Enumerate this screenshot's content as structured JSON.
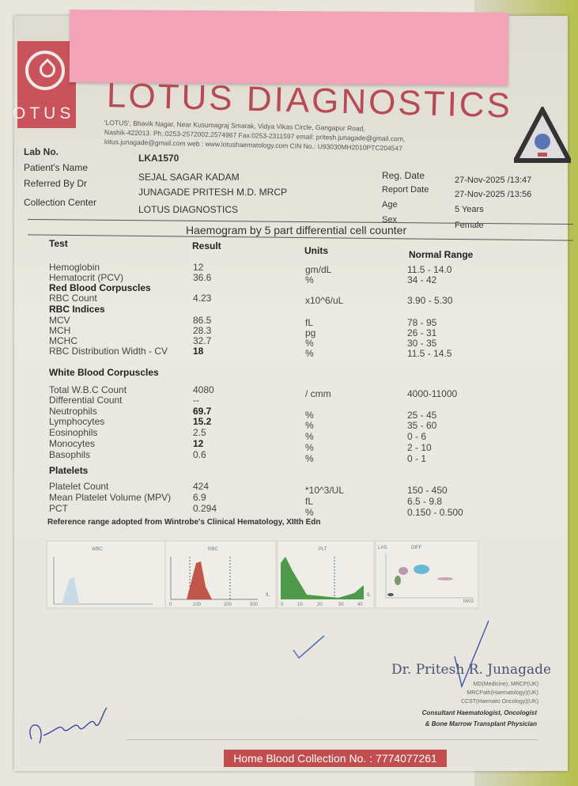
{
  "lab": {
    "name": "LOTUS DIAGNOSTICS",
    "logo_text": "OTUS",
    "address": [
      "'LOTUS', Bhavik Nagar, Near Kusumagraj Smarak, Vidya Vikas Circle, Gangapur Road,",
      "Nashik-422013. Ph.:0253-2572002,2574967 Fax:0253-2311597 email: pritesh.junagade@gmail.com,",
      "lotus.junagade@gmail.com web : www.lotushaematology.com  CIN No.: U93030MH2010PTC204547"
    ]
  },
  "patient": {
    "lab_no_label": "Lab No.",
    "lab_no": "LKA1570",
    "name_label": "Patient's Name",
    "name": "SEJAL SAGAR KADAM",
    "ref_label": "Referred By Dr",
    "ref": "JUNAGADE PRITESH  M.D. MRCP",
    "center_label": "Collection Center",
    "center": "LOTUS DIAGNOSTICS",
    "reg_label": "Reg. Date",
    "reg": "27-Nov-2025  /13:47",
    "report_label": "Report Date",
    "report": "27-Nov-2025 /13:56",
    "age_label": "Age",
    "age": "5 Years",
    "sex_label": "Sex",
    "sex": "Female"
  },
  "report": {
    "title": "Haemogram by 5 part differential cell counter",
    "headers": {
      "test": "Test",
      "result": "Result",
      "units": "Units",
      "range": "Normal Range"
    },
    "rows": [
      {
        "test": "Hemoglobin",
        "result": "12",
        "unit": "gm/dL",
        "range": "11.5 - 14.0"
      },
      {
        "test": "Hematocrit (PCV)",
        "result": "36.6",
        "unit": "%",
        "range": "34 - 42"
      },
      {
        "section": "Red Blood Corpuscles"
      },
      {
        "test": "RBC Count",
        "result": "4.23",
        "unit": "x10^6/uL",
        "range": "3.90 - 5.30"
      },
      {
        "section": "RBC Indices"
      },
      {
        "test": "MCV",
        "result": "86.5",
        "unit": "fL",
        "range": "78 - 95"
      },
      {
        "test": "MCH",
        "result": "28.3",
        "unit": "pg",
        "range": "26 - 31"
      },
      {
        "test": "MCHC",
        "result": "32.7",
        "unit": "%",
        "range": "30 - 35"
      },
      {
        "test": "RBC Distribution Width - CV",
        "result": "18",
        "unit": "%",
        "range": "11.5 - 14.5",
        "flag": true
      },
      {
        "section": "White Blood Corpuscles"
      },
      {
        "test": "Total W.B.C Count",
        "result": "4080",
        "unit": "/ cmm",
        "range": "4000-11000"
      },
      {
        "test": "Differential Count",
        "result": "--",
        "unit": "",
        "range": ""
      },
      {
        "test": "Neutrophils",
        "result": "69.7",
        "unit": "%",
        "range": "25 - 45",
        "flag": true
      },
      {
        "test": "Lymphocytes",
        "result": "15.2",
        "unit": "%",
        "range": "35 - 60",
        "flag": true
      },
      {
        "test": "Eosinophils",
        "result": "2.5",
        "unit": "%",
        "range": "0 - 6"
      },
      {
        "test": "Monocytes",
        "result": "12",
        "unit": "%",
        "range": "2 - 10",
        "flag": true
      },
      {
        "test": "Basophils",
        "result": "0.6",
        "unit": "%",
        "range": "0 - 1"
      },
      {
        "section": "Platelets"
      },
      {
        "test": "Platelet Count",
        "result": "424",
        "unit": "*10^3/UL",
        "range": "150 - 450"
      },
      {
        "test": "Mean Platelet Volume (MPV)",
        "result": "6.9",
        "unit": "fL",
        "range": "6.5 - 9.8"
      },
      {
        "test": "PCT",
        "result": "0.294",
        "unit": "%",
        "range": "0.150 - 0.500"
      }
    ],
    "reference": "Reference range adopted from Wintrobe's Clinical Hematology, XIIth Edn"
  },
  "histograms": {
    "wbc": "WBC",
    "rbc": "RBC",
    "plt": "PLT",
    "diff": "DIFF",
    "las": "LAS",
    "mas": "MAS",
    "fl": "fL",
    "rbc_ticks": [
      "0",
      "100",
      "200",
      "300"
    ],
    "plt_ticks": [
      "0",
      "10",
      "20",
      "30",
      "40"
    ]
  },
  "doctor": {
    "name": "Dr. Pritesh R. Junagade",
    "quals": [
      "MD(Medicine), MRCP(UK)",
      "MRCPath(Haematology)(UK)",
      "CCST(Haemato Oncology)(UK)"
    ],
    "title1": "Consultant Haematologist, Oncologist",
    "title2": "& Bone Marrow Transplant Physician"
  },
  "footer": {
    "label": "Home Blood Collection No. : 7774077261"
  },
  "colors": {
    "brand": "#b84a55",
    "rbc": "#c0554a",
    "plt": "#4f9a4a",
    "wbc": "#c9dbe6"
  }
}
